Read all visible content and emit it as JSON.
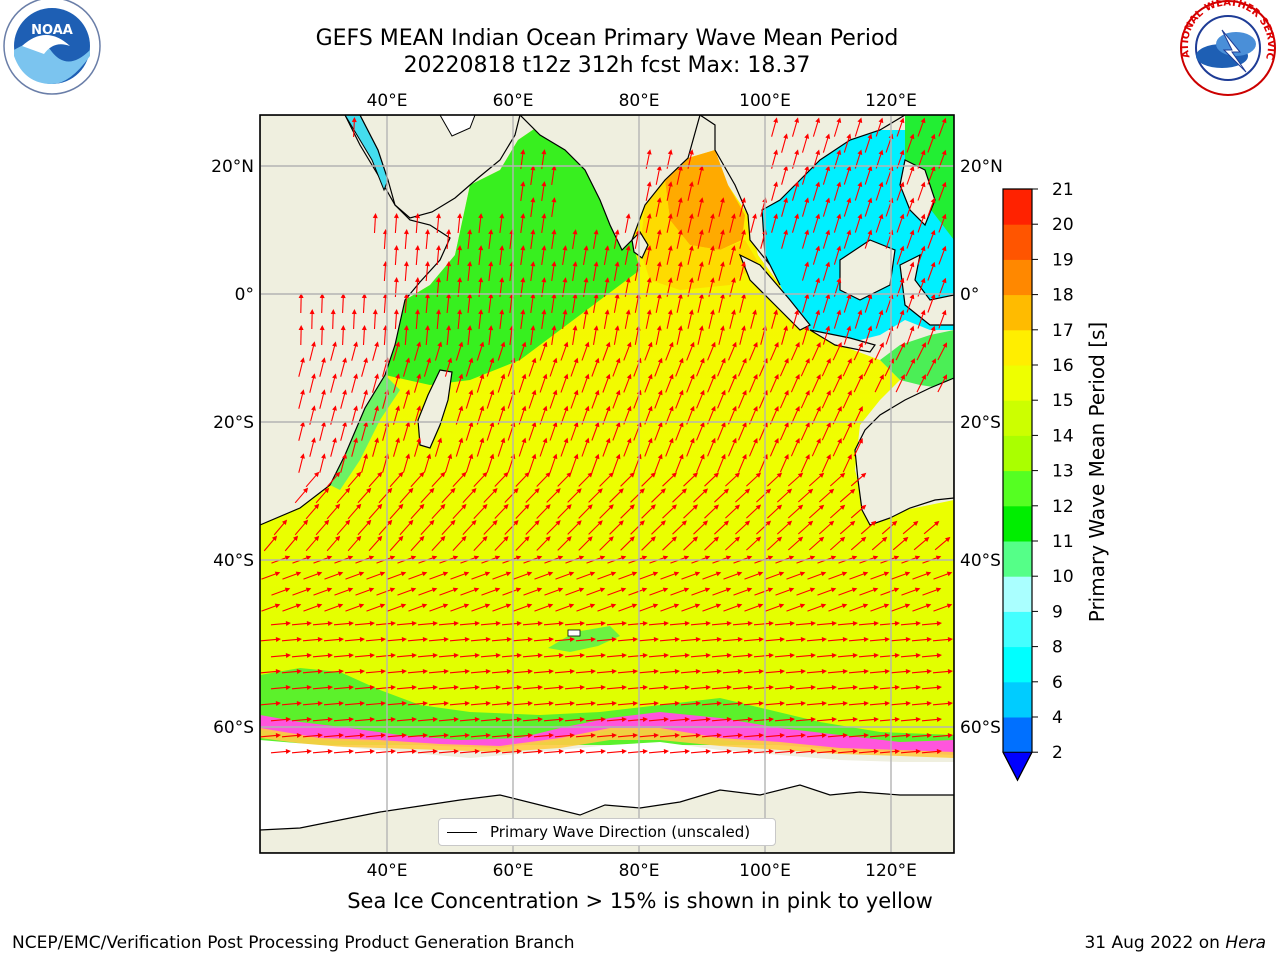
{
  "title": {
    "line1": "GEFS MEAN Indian Ocean Primary Wave Mean Period",
    "line2": "20220818 t12z 312h fcst   Max: 18.37"
  },
  "map": {
    "lon_ticks": [
      "40°E",
      "60°E",
      "80°E",
      "100°E",
      "120°E"
    ],
    "lat_ticks": [
      "20°N",
      "0°",
      "20°S",
      "40°S",
      "60°S"
    ],
    "legend_label": "Primary Wave Direction (unscaled)",
    "colors": {
      "land": "#efefdf",
      "arrow": "#ff0000",
      "grid": "#b4b4b4"
    }
  },
  "colorbar": {
    "label": "Primary Wave Mean Period [s]",
    "ticks": [
      "2",
      "4",
      "6",
      "8",
      "9",
      "10",
      "11",
      "12",
      "13",
      "14",
      "15",
      "16",
      "17",
      "18",
      "19",
      "20",
      "21"
    ],
    "colors": [
      "#0070ff",
      "#00ccff",
      "#00ffff",
      "#44ffff",
      "#aaffff",
      "#55ff88",
      "#00ee00",
      "#55ff22",
      "#aaff00",
      "#ccff00",
      "#eeff00",
      "#ffee00",
      "#ffbb00",
      "#ff8800",
      "#ff5500",
      "#ff2200"
    ],
    "under_color": "#0000ff"
  },
  "footer": {
    "note": "Sea Ice Concentration > 15% is shown in pink to yellow",
    "left": "NCEP/EMC/Verification Post Processing Product Generation Branch",
    "date": "31 Aug 2022 on ",
    "machine": "Hera"
  },
  "logos": {
    "noaa": "NOAA",
    "nws": "NATIONAL WEATHER SERVICE"
  }
}
